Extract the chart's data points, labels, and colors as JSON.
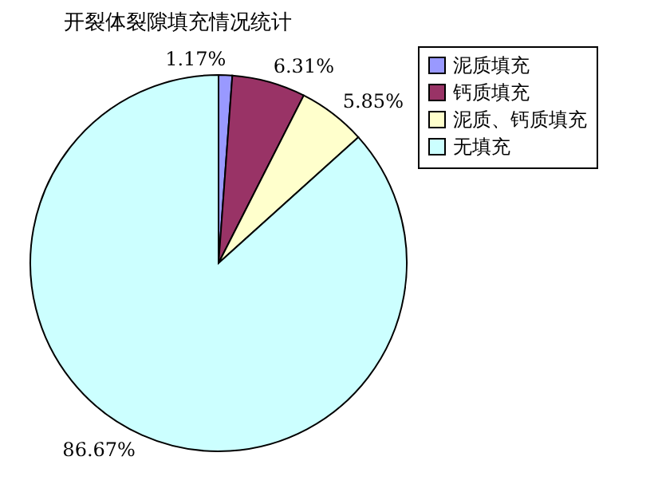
{
  "chart_data": {
    "type": "pie",
    "title": "开裂体裂隙填充情况统计",
    "categories": [
      "泥质填充",
      "钙质填充",
      "泥质、钙质填充",
      "无填充"
    ],
    "values": [
      1.17,
      6.31,
      5.85,
      86.67
    ],
    "colors": [
      "#9999ff",
      "#993366",
      "#ffffcc",
      "#ccffff"
    ],
    "value_labels": [
      "1.17%",
      "6.31%",
      "5.85%",
      "86.67%"
    ],
    "legend": "top right"
  }
}
